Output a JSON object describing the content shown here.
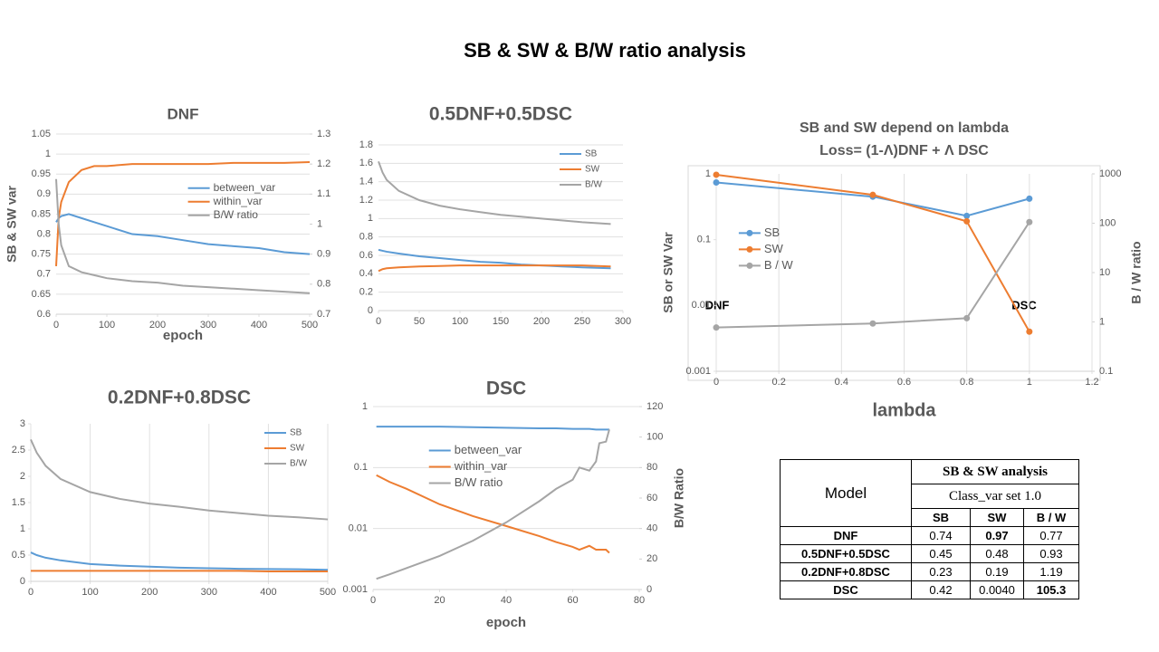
{
  "title": "SB & SW & B/W ratio analysis",
  "chart_data": [
    {
      "type": "line",
      "title": "DNF",
      "ylabel": "SB & SW var",
      "xlabel": "epoch",
      "x": [
        0,
        5,
        10,
        25,
        50,
        75,
        100,
        150,
        200,
        250,
        300,
        350,
        400,
        450,
        500
      ],
      "xlim": [
        0,
        500
      ],
      "xticks": [
        0,
        100,
        200,
        300,
        400,
        500
      ],
      "ylim": [
        0.6,
        1.05
      ],
      "yticks": [
        0.6,
        0.65,
        0.7,
        0.75,
        0.8,
        0.85,
        0.9,
        0.95,
        1,
        1.05
      ],
      "y2lim": [
        0.7,
        1.3
      ],
      "y2ticks": [
        0.7,
        0.8,
        0.9,
        1,
        1.1,
        1.2,
        1.3
      ],
      "grid": "y",
      "legend": "center",
      "series": [
        {
          "name": "between_var",
          "color": "#5b9bd5",
          "values": [
            0.83,
            0.84,
            0.845,
            0.85,
            0.84,
            0.83,
            0.82,
            0.8,
            0.795,
            0.785,
            0.775,
            0.77,
            0.765,
            0.755,
            0.75
          ]
        },
        {
          "name": "within_var",
          "color": "#ed7d31",
          "values": [
            0.72,
            0.84,
            0.88,
            0.93,
            0.96,
            0.97,
            0.97,
            0.975,
            0.975,
            0.975,
            0.975,
            0.978,
            0.978,
            0.978,
            0.98
          ]
        },
        {
          "name": "B/W ratio",
          "color": "#a5a5a5",
          "axis": "y2",
          "values": [
            1.15,
            1.0,
            0.93,
            0.86,
            0.84,
            0.83,
            0.82,
            0.81,
            0.805,
            0.795,
            0.79,
            0.785,
            0.78,
            0.775,
            0.77
          ]
        }
      ]
    },
    {
      "type": "line",
      "title": "0.5DNF+0.5DSC",
      "x": [
        0,
        5,
        10,
        25,
        50,
        75,
        100,
        125,
        150,
        175,
        200,
        225,
        250,
        285
      ],
      "xlim": [
        0,
        300
      ],
      "xticks": [
        0,
        50,
        100,
        150,
        200,
        250,
        300
      ],
      "ylim": [
        0,
        1.8
      ],
      "yticks": [
        0,
        0.2,
        0.4,
        0.6,
        0.8,
        1,
        1.2,
        1.4,
        1.6,
        1.8
      ],
      "grid": "y",
      "legend": "top-right",
      "series": [
        {
          "name": "SB",
          "color": "#5b9bd5",
          "values": [
            0.66,
            0.65,
            0.64,
            0.62,
            0.59,
            0.57,
            0.55,
            0.53,
            0.52,
            0.5,
            0.49,
            0.48,
            0.47,
            0.46
          ]
        },
        {
          "name": "SW",
          "color": "#ed7d31",
          "values": [
            0.43,
            0.45,
            0.46,
            0.47,
            0.48,
            0.485,
            0.49,
            0.49,
            0.49,
            0.49,
            0.49,
            0.49,
            0.49,
            0.48
          ]
        },
        {
          "name": "B/W",
          "color": "#a5a5a5",
          "values": [
            1.62,
            1.5,
            1.42,
            1.3,
            1.2,
            1.14,
            1.1,
            1.07,
            1.04,
            1.02,
            1.0,
            0.98,
            0.96,
            0.94
          ]
        }
      ]
    },
    {
      "type": "line",
      "title": "0.2DNF+0.8DSC",
      "x": [
        0,
        10,
        25,
        50,
        100,
        150,
        200,
        250,
        300,
        350,
        400,
        450,
        500
      ],
      "xlim": [
        0,
        500
      ],
      "xticks": [
        0,
        100,
        200,
        300,
        400,
        500
      ],
      "ylim": [
        0,
        3
      ],
      "yticks": [
        0,
        0.5,
        1,
        1.5,
        2,
        2.5,
        3
      ],
      "grid": "x",
      "legend": "top-right",
      "series": [
        {
          "name": "SB",
          "color": "#5b9bd5",
          "values": [
            0.55,
            0.5,
            0.45,
            0.4,
            0.33,
            0.3,
            0.28,
            0.26,
            0.25,
            0.24,
            0.235,
            0.23,
            0.22
          ]
        },
        {
          "name": "SW",
          "color": "#ed7d31",
          "values": [
            0.2,
            0.2,
            0.2,
            0.2,
            0.2,
            0.2,
            0.2,
            0.2,
            0.2,
            0.2,
            0.19,
            0.19,
            0.19
          ]
        },
        {
          "name": "B/W",
          "color": "#a5a5a5",
          "values": [
            2.7,
            2.45,
            2.2,
            1.95,
            1.7,
            1.57,
            1.48,
            1.42,
            1.35,
            1.3,
            1.25,
            1.22,
            1.18
          ]
        }
      ]
    },
    {
      "type": "line",
      "title": "DSC",
      "xlabel": "epoch",
      "y2label": "B/W Ratio",
      "x": [
        1,
        5,
        10,
        20,
        30,
        40,
        50,
        55,
        60,
        62,
        65,
        67,
        68,
        70,
        71
      ],
      "xlim": [
        0,
        80
      ],
      "xticks": [
        0,
        20,
        40,
        60,
        80
      ],
      "ylog": true,
      "ylim": [
        0.001,
        1
      ],
      "yticks": [
        0.001,
        0.01,
        0.1,
        1
      ],
      "y2lim": [
        0,
        120
      ],
      "y2ticks": [
        0,
        20,
        40,
        60,
        80,
        100,
        120
      ],
      "grid": "y",
      "legend": "center-left",
      "series": [
        {
          "name": "between_var",
          "color": "#5b9bd5",
          "values": [
            0.47,
            0.47,
            0.47,
            0.47,
            0.46,
            0.45,
            0.44,
            0.44,
            0.43,
            0.43,
            0.43,
            0.42,
            0.42,
            0.42,
            0.42
          ]
        },
        {
          "name": "within_var",
          "color": "#ed7d31",
          "values": [
            0.075,
            0.058,
            0.045,
            0.025,
            0.016,
            0.011,
            0.0075,
            0.006,
            0.005,
            0.0045,
            0.0052,
            0.0045,
            0.0045,
            0.0045,
            0.004
          ]
        },
        {
          "name": "B/W  ratio",
          "color": "#a5a5a5",
          "axis": "y2",
          "values": [
            7,
            10,
            14,
            22,
            32,
            44,
            58,
            66,
            72,
            80,
            78,
            84,
            96,
            97,
            105
          ]
        }
      ]
    },
    {
      "type": "line",
      "title": "SB and SW depend on lambda",
      "subtitle": "Loss= (1-Λ)DNF + Λ DSC",
      "xlabel": "lambda",
      "ylabel": "SB or SW Var",
      "y2label": "B / W ratio",
      "annotations": [
        "DNF",
        "DSC"
      ],
      "x": [
        0,
        0.5,
        0.8,
        1
      ],
      "xlim": [
        0,
        1.2
      ],
      "xticks": [
        0,
        0.2,
        0.4,
        0.6,
        0.8,
        1,
        1.2
      ],
      "ylog": true,
      "ylim": [
        0.001,
        1
      ],
      "yticks": [
        0.001,
        0.01,
        0.1,
        1
      ],
      "y2log": true,
      "y2lim": [
        0.1,
        1000
      ],
      "y2ticks": [
        0.1,
        1,
        10,
        100,
        1000
      ],
      "grid": "x",
      "legend": "left",
      "markers": true,
      "series": [
        {
          "name": "SB",
          "color": "#5b9bd5",
          "values": [
            0.74,
            0.45,
            0.23,
            0.42
          ]
        },
        {
          "name": "SW",
          "color": "#ed7d31",
          "values": [
            0.97,
            0.48,
            0.19,
            0.004
          ]
        },
        {
          "name": "B / W",
          "color": "#a5a5a5",
          "axis": "y2",
          "values": [
            0.77,
            0.93,
            1.19,
            105.3
          ]
        }
      ]
    }
  ],
  "table": {
    "model": "Model",
    "group": "SB & SW analysis",
    "setting": "Class_var set 1.0",
    "columns": [
      "SB",
      "SW",
      "B / W"
    ],
    "rows": [
      [
        "DNF",
        "0.74",
        "0.97",
        "0.77"
      ],
      [
        "0.5DNF+0.5DSC",
        "0.45",
        "0.48",
        "0.93"
      ],
      [
        "0.2DNF+0.8DSC",
        "0.23",
        "0.19",
        "1.19"
      ],
      [
        "DSC",
        "0.42",
        "0.0040",
        "105.3"
      ]
    ]
  }
}
